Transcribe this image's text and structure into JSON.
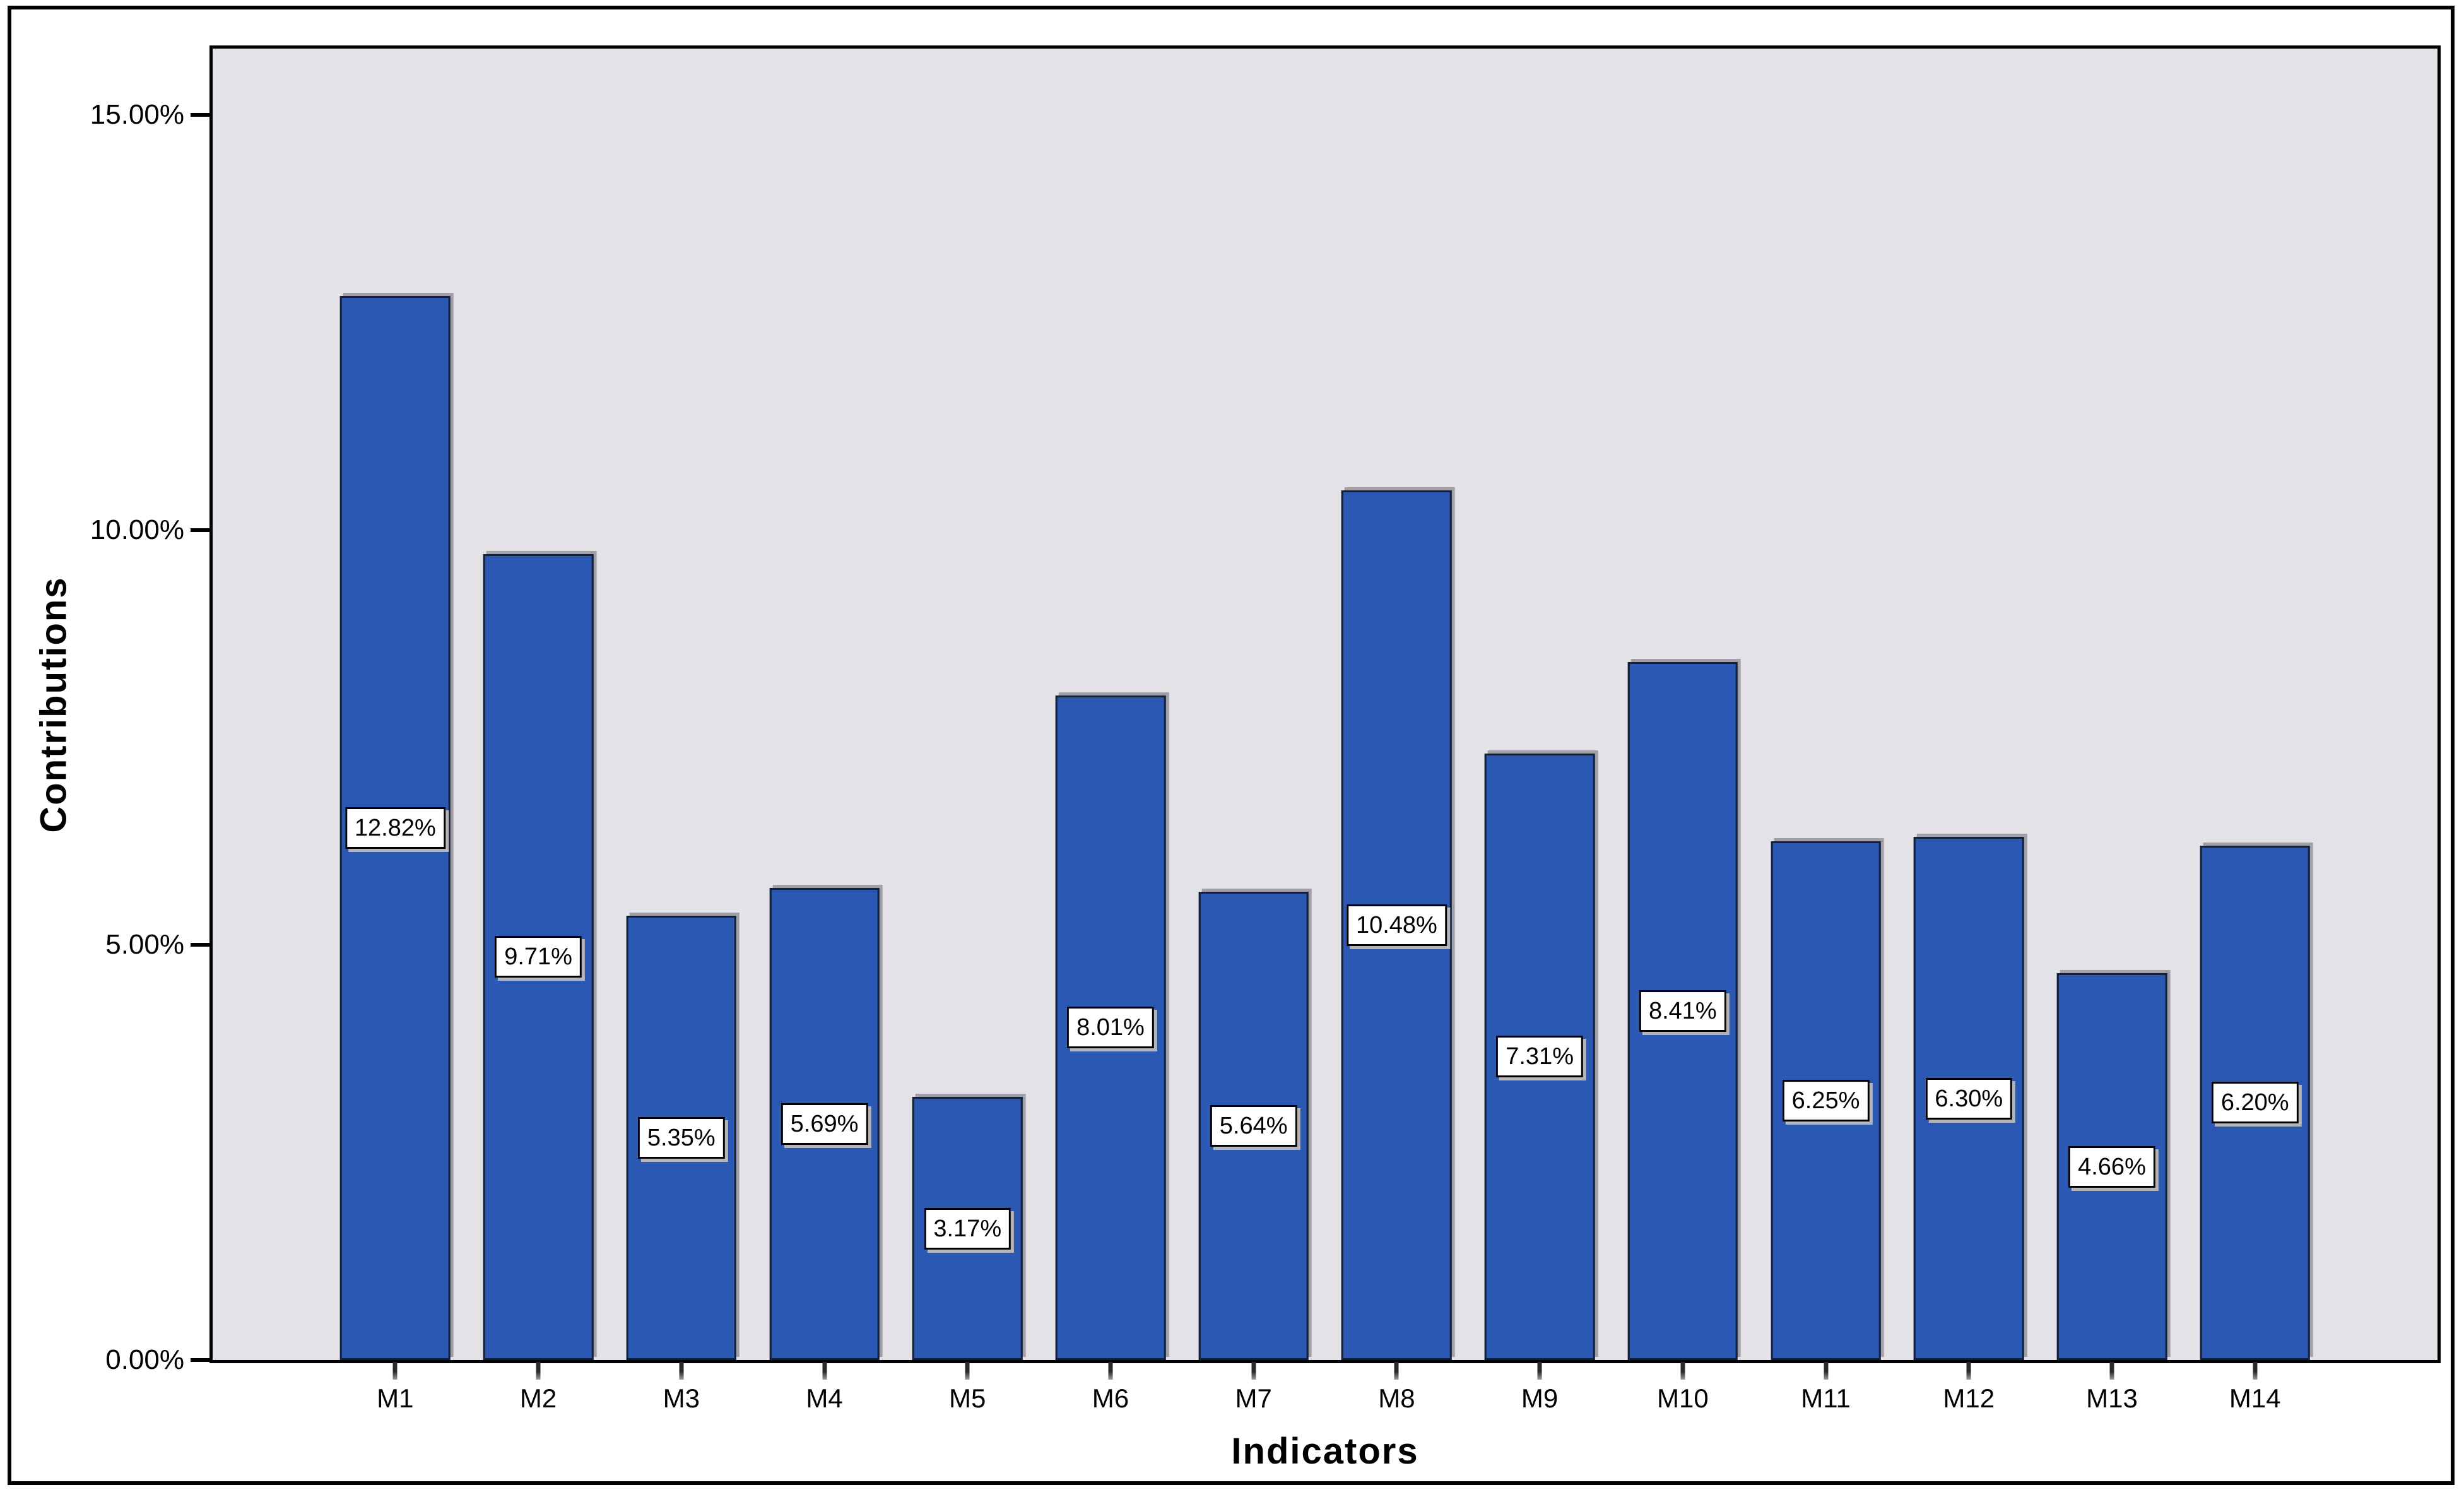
{
  "figure": {
    "background": "#ffffff",
    "outer_border_color": "#000000",
    "plot_background": "#e3e2e7"
  },
  "chart_data": {
    "type": "bar",
    "title": "",
    "xlabel": "Indicators",
    "ylabel": "Contributions",
    "categories": [
      "M1",
      "M2",
      "M3",
      "M4",
      "M5",
      "M6",
      "M7",
      "M8",
      "M9",
      "M10",
      "M11",
      "M12",
      "M13",
      "M14"
    ],
    "values": [
      12.82,
      9.71,
      5.35,
      5.69,
      3.17,
      8.01,
      5.64,
      10.48,
      7.31,
      8.41,
      6.25,
      6.3,
      4.66,
      6.2
    ],
    "bar_labels": [
      "12.82%",
      "9.71%",
      "5.35%",
      "5.69%",
      "3.17%",
      "8.01%",
      "5.64%",
      "10.48%",
      "7.31%",
      "8.41%",
      "6.25%",
      "6.30%",
      "4.66%",
      "6.20%"
    ],
    "y_ticks": {
      "values": [
        0,
        5,
        10,
        15
      ],
      "labels": [
        "0.00%",
        "5.00%",
        "10.00%",
        "15.00%"
      ]
    },
    "ylim": [
      0,
      15.8
    ],
    "grid": false,
    "legend": null,
    "bar_color": "#2a58b2",
    "bar_border_color": "#141f38",
    "bar_label_background": "#ffffff",
    "bar_label_border_color": "#000000"
  }
}
